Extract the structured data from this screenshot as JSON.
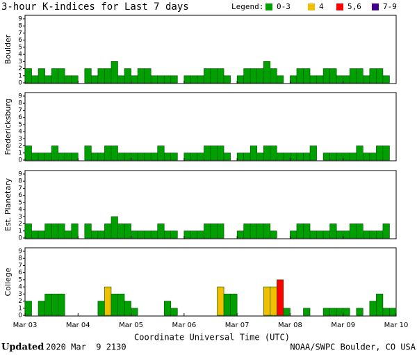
{
  "header": {
    "title": "3-hour K-indices for Last 7 days",
    "legend_title": "Legend:",
    "legend": [
      {
        "label": "0-3",
        "color": "#00a000"
      },
      {
        "label": "4",
        "color": "#f0c000"
      },
      {
        "label": "5,6",
        "color": "#ff0000"
      },
      {
        "label": "7-9",
        "color": "#400090"
      }
    ]
  },
  "chart_data": [
    {
      "type": "bar",
      "ylabel": "Boulder",
      "ylim": [
        0,
        9
      ],
      "yticks": [
        0,
        1,
        2,
        3,
        4,
        5,
        6,
        7,
        8,
        9
      ],
      "values": [
        2,
        1,
        2,
        1,
        2,
        2,
        1,
        1,
        0,
        2,
        1,
        2,
        2,
        3,
        1,
        2,
        1,
        2,
        2,
        1,
        1,
        1,
        1,
        0,
        1,
        1,
        1,
        2,
        2,
        2,
        1,
        0,
        1,
        2,
        2,
        2,
        3,
        2,
        1,
        0,
        1,
        2,
        2,
        1,
        1,
        2,
        2,
        1,
        1,
        2,
        2,
        1,
        2,
        2,
        1,
        0
      ]
    },
    {
      "type": "bar",
      "ylabel": "Fredericksburg",
      "ylim": [
        0,
        9
      ],
      "yticks": [
        0,
        1,
        2,
        3,
        4,
        5,
        6,
        7,
        8,
        9
      ],
      "values": [
        2,
        1,
        1,
        1,
        2,
        1,
        1,
        1,
        0,
        2,
        1,
        1,
        2,
        2,
        1,
        1,
        1,
        1,
        1,
        1,
        2,
        1,
        1,
        0,
        1,
        1,
        1,
        2,
        2,
        2,
        1,
        0,
        1,
        1,
        2,
        1,
        2,
        2,
        1,
        1,
        1,
        1,
        1,
        2,
        0,
        1,
        1,
        1,
        1,
        1,
        2,
        1,
        1,
        2,
        2,
        0
      ]
    },
    {
      "type": "bar",
      "ylabel": "Est. Planetary",
      "ylim": [
        0,
        9
      ],
      "yticks": [
        0,
        1,
        2,
        3,
        4,
        5,
        6,
        7,
        8,
        9
      ],
      "values": [
        2,
        1,
        1,
        2,
        2,
        2,
        1,
        2,
        0,
        2,
        1,
        1,
        2,
        3,
        2,
        2,
        1,
        1,
        1,
        1,
        2,
        1,
        1,
        0,
        1,
        1,
        1,
        2,
        2,
        2,
        0,
        0,
        1,
        2,
        2,
        2,
        2,
        1,
        0,
        0,
        1,
        2,
        2,
        1,
        1,
        1,
        2,
        1,
        1,
        2,
        2,
        1,
        1,
        1,
        2,
        0
      ]
    },
    {
      "type": "bar",
      "ylabel": "College",
      "ylim": [
        0,
        9
      ],
      "yticks": [
        0,
        1,
        2,
        3,
        4,
        5,
        6,
        7,
        8,
        9
      ],
      "values": [
        2,
        0,
        2,
        3,
        3,
        3,
        0,
        0,
        0,
        0,
        0,
        2,
        4,
        3,
        3,
        2,
        1,
        0,
        0,
        0,
        0,
        2,
        1,
        0,
        0,
        0,
        0,
        0,
        0,
        4,
        3,
        3,
        0,
        0,
        0,
        0,
        4,
        4,
        5,
        1,
        0,
        0,
        1,
        0,
        0,
        1,
        1,
        1,
        1,
        0,
        1,
        0,
        2,
        3,
        1,
        1
      ]
    }
  ],
  "x_axis": {
    "labels": [
      "Mar 03",
      "Mar 04",
      "Mar 05",
      "Mar 06",
      "Mar 07",
      "Mar 08",
      "Mar 09",
      "Mar 10"
    ],
    "label": "Coordinate Universal Time (UTC)"
  },
  "footer": {
    "updated": "Updated",
    "time": "2020 Mar  9 2130",
    "source": "NOAA/SWPC Boulder, CO USA"
  }
}
